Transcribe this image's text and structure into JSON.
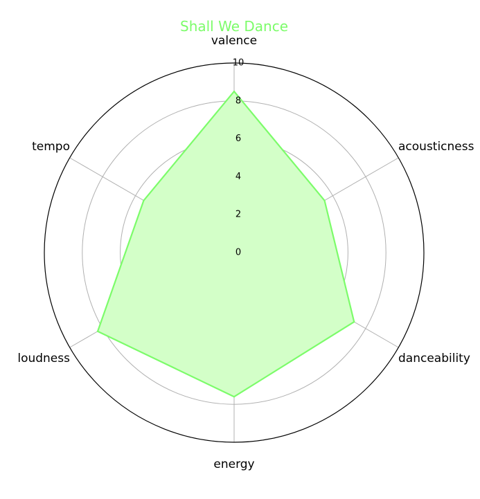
{
  "chart_data": {
    "type": "radar",
    "title": "Shall We Dance",
    "axes": [
      "valence",
      "acousticness",
      "danceability",
      "energy",
      "loudness",
      "tempo"
    ],
    "series": [
      {
        "values": [
          8.5,
          5.5,
          7.3,
          7.6,
          8.3,
          5.5
        ]
      }
    ],
    "rlim": [
      0,
      10
    ],
    "r_ticks": [
      0,
      2,
      4,
      6,
      8,
      10
    ],
    "grid": true,
    "colors": {
      "title": "#7cfc6a",
      "line": "#7cfc6a",
      "fill": "#d3ffc8",
      "grid": "#b0b0b0",
      "frame": "#000000"
    }
  }
}
